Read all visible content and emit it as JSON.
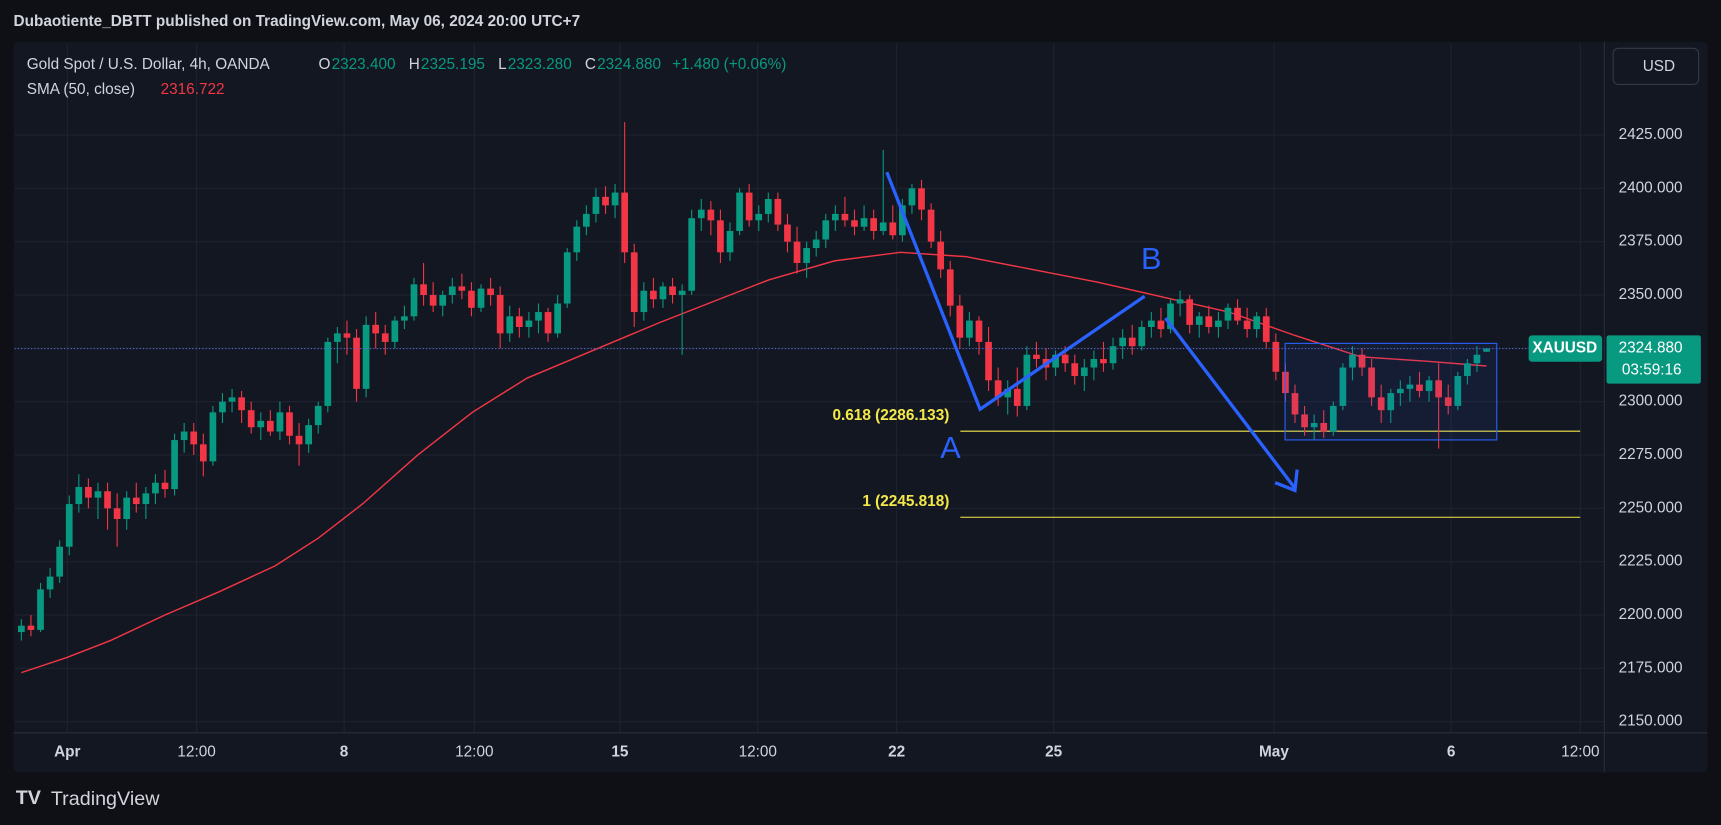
{
  "header": {
    "title": "Dubaotiente_DBTT published on TradingView.com, May 06, 2024 20:00 UTC+7"
  },
  "currency_button": "USD",
  "footer": {
    "logo": "TradingView"
  },
  "legend": {
    "symbol": "Gold Spot / U.S. Dollar, 4h, OANDA",
    "ohlc": [
      {
        "key": "O",
        "text": "2323.400"
      },
      {
        "key": "H",
        "text": "2325.195"
      },
      {
        "key": "L",
        "text": "2323.280"
      },
      {
        "key": "C",
        "text": "2324.880"
      }
    ],
    "change": "+1.480 (+0.06%)",
    "sma_name": "SMA (50, close)",
    "sma_value": "2316.722"
  },
  "chart_data": {
    "type": "candlestick",
    "up_color": "#089981",
    "down_color": "#f23645",
    "sma_color": "#f23645",
    "grid": true,
    "xlim": [
      -0.7,
      165.3
    ],
    "ylim": [
      2128.3,
      2467.7
    ],
    "xticks": [
      {
        "value": 4.8,
        "label": "Apr"
      },
      {
        "value": 18.3,
        "label": "12:00"
      },
      {
        "value": 33.7,
        "label": "8"
      },
      {
        "value": 47.3,
        "label": "12:00"
      },
      {
        "value": 62.5,
        "label": "15"
      },
      {
        "value": 76.9,
        "label": "12:00"
      },
      {
        "value": 91.4,
        "label": "22"
      },
      {
        "value": 107.8,
        "label": "25"
      },
      {
        "value": 130.8,
        "label": "May"
      },
      {
        "value": 149.3,
        "label": "6"
      },
      {
        "value": 162.8,
        "label": "12:00"
      }
    ],
    "yticks": [
      {
        "value": 2150,
        "label": "2150.000"
      },
      {
        "value": 2175,
        "label": "2175.000"
      },
      {
        "value": 2200,
        "label": "2200.000"
      },
      {
        "value": 2225,
        "label": "2225.000"
      },
      {
        "value": 2250,
        "label": "2250.000"
      },
      {
        "value": 2275,
        "label": "2275.000"
      },
      {
        "value": 2300,
        "label": "2300.000"
      },
      {
        "value": 2325,
        "label": "2325.000"
      },
      {
        "value": 2350,
        "label": "2350.000"
      },
      {
        "value": 2375,
        "label": "2375.000"
      },
      {
        "value": 2400,
        "label": "2400.000"
      },
      {
        "value": 2425,
        "label": "2425.000"
      }
    ],
    "candles": [
      [
        2192,
        2198,
        2188,
        2195
      ],
      [
        2195,
        2200,
        2190,
        2193
      ],
      [
        2193,
        2215,
        2192,
        2212
      ],
      [
        2212,
        2222,
        2208,
        2218
      ],
      [
        2218,
        2235,
        2215,
        2232
      ],
      [
        2232,
        2256,
        2228,
        2252
      ],
      [
        2252,
        2266,
        2248,
        2260
      ],
      [
        2260,
        2264,
        2250,
        2255
      ],
      [
        2255,
        2262,
        2245,
        2258
      ],
      [
        2258,
        2262,
        2240,
        2250
      ],
      [
        2250,
        2257,
        2232,
        2245
      ],
      [
        2245,
        2258,
        2240,
        2255
      ],
      [
        2255,
        2262,
        2248,
        2252
      ],
      [
        2252,
        2260,
        2245,
        2257
      ],
      [
        2257,
        2266,
        2252,
        2262
      ],
      [
        2262,
        2268,
        2255,
        2259
      ],
      [
        2259,
        2285,
        2256,
        2282
      ],
      [
        2282,
        2290,
        2276,
        2286
      ],
      [
        2286,
        2290,
        2275,
        2280
      ],
      [
        2280,
        2285,
        2265,
        2272
      ],
      [
        2272,
        2298,
        2270,
        2295
      ],
      [
        2295,
        2304,
        2290,
        2300
      ],
      [
        2300,
        2306,
        2295,
        2302
      ],
      [
        2302,
        2305,
        2290,
        2296
      ],
      [
        2296,
        2300,
        2285,
        2288
      ],
      [
        2288,
        2295,
        2282,
        2291
      ],
      [
        2291,
        2296,
        2284,
        2286
      ],
      [
        2286,
        2300,
        2282,
        2295
      ],
      [
        2295,
        2298,
        2280,
        2284
      ],
      [
        2284,
        2290,
        2270,
        2280
      ],
      [
        2280,
        2292,
        2276,
        2289
      ],
      [
        2289,
        2300,
        2285,
        2298
      ],
      [
        2298,
        2330,
        2295,
        2328
      ],
      [
        2328,
        2335,
        2318,
        2332
      ],
      [
        2332,
        2338,
        2322,
        2330
      ],
      [
        2330,
        2334,
        2300,
        2306
      ],
      [
        2306,
        2340,
        2302,
        2336
      ],
      [
        2336,
        2342,
        2325,
        2332
      ],
      [
        2332,
        2336,
        2322,
        2328
      ],
      [
        2328,
        2340,
        2325,
        2338
      ],
      [
        2338,
        2345,
        2334,
        2340
      ],
      [
        2340,
        2358,
        2338,
        2355
      ],
      [
        2355,
        2365,
        2345,
        2350
      ],
      [
        2350,
        2356,
        2342,
        2345
      ],
      [
        2345,
        2352,
        2340,
        2350
      ],
      [
        2350,
        2358,
        2346,
        2354
      ],
      [
        2354,
        2360,
        2348,
        2352
      ],
      [
        2352,
        2356,
        2340,
        2344
      ],
      [
        2344,
        2355,
        2342,
        2353
      ],
      [
        2353,
        2358,
        2345,
        2350
      ],
      [
        2350,
        2354,
        2325,
        2332
      ],
      [
        2332,
        2345,
        2328,
        2340
      ],
      [
        2340,
        2344,
        2330,
        2335
      ],
      [
        2335,
        2342,
        2330,
        2338
      ],
      [
        2338,
        2346,
        2332,
        2342
      ],
      [
        2342,
        2344,
        2328,
        2332
      ],
      [
        2332,
        2350,
        2330,
        2346
      ],
      [
        2346,
        2372,
        2344,
        2370
      ],
      [
        2370,
        2385,
        2366,
        2382
      ],
      [
        2382,
        2392,
        2378,
        2388
      ],
      [
        2388,
        2400,
        2384,
        2396
      ],
      [
        2396,
        2401,
        2388,
        2392
      ],
      [
        2392,
        2402,
        2386,
        2398
      ],
      [
        2398,
        2431,
        2365,
        2370
      ],
      [
        2370,
        2374,
        2335,
        2342
      ],
      [
        2342,
        2356,
        2338,
        2352
      ],
      [
        2352,
        2358,
        2344,
        2348
      ],
      [
        2348,
        2356,
        2344,
        2354
      ],
      [
        2354,
        2358,
        2346,
        2350
      ],
      [
        2350,
        2355,
        2322,
        2352
      ],
      [
        2352,
        2390,
        2350,
        2386
      ],
      [
        2386,
        2395,
        2380,
        2390
      ],
      [
        2390,
        2394,
        2378,
        2385
      ],
      [
        2385,
        2390,
        2365,
        2370
      ],
      [
        2370,
        2384,
        2366,
        2380
      ],
      [
        2380,
        2400,
        2378,
        2398
      ],
      [
        2398,
        2402,
        2382,
        2385
      ],
      [
        2385,
        2392,
        2380,
        2388
      ],
      [
        2388,
        2398,
        2384,
        2395
      ],
      [
        2395,
        2398,
        2380,
        2383
      ],
      [
        2383,
        2388,
        2370,
        2375
      ],
      [
        2375,
        2382,
        2360,
        2365
      ],
      [
        2365,
        2375,
        2358,
        2372
      ],
      [
        2372,
        2380,
        2368,
        2376
      ],
      [
        2376,
        2388,
        2372,
        2385
      ],
      [
        2385,
        2392,
        2380,
        2388
      ],
      [
        2388,
        2396,
        2382,
        2385
      ],
      [
        2385,
        2390,
        2378,
        2382
      ],
      [
        2382,
        2392,
        2380,
        2386
      ],
      [
        2386,
        2390,
        2376,
        2380
      ],
      [
        2380,
        2418,
        2378,
        2384
      ],
      [
        2384,
        2392,
        2376,
        2378
      ],
      [
        2378,
        2395,
        2375,
        2392
      ],
      [
        2392,
        2402,
        2388,
        2400
      ],
      [
        2400,
        2404,
        2385,
        2390
      ],
      [
        2390,
        2393,
        2372,
        2375
      ],
      [
        2375,
        2380,
        2358,
        2362
      ],
      [
        2362,
        2366,
        2340,
        2345
      ],
      [
        2345,
        2350,
        2325,
        2330
      ],
      [
        2330,
        2342,
        2326,
        2338
      ],
      [
        2338,
        2340,
        2322,
        2328
      ],
      [
        2328,
        2335,
        2305,
        2310
      ],
      [
        2310,
        2316,
        2298,
        2302
      ],
      [
        2302,
        2310,
        2294,
        2306
      ],
      [
        2306,
        2316,
        2293,
        2298
      ],
      [
        2298,
        2326,
        2296,
        2322
      ],
      [
        2322,
        2328,
        2316,
        2320
      ],
      [
        2320,
        2325,
        2310,
        2316
      ],
      [
        2316,
        2324,
        2312,
        2322
      ],
      [
        2322,
        2326,
        2314,
        2318
      ],
      [
        2318,
        2322,
        2308,
        2312
      ],
      [
        2312,
        2320,
        2305,
        2316
      ],
      [
        2316,
        2324,
        2310,
        2320
      ],
      [
        2320,
        2328,
        2314,
        2318
      ],
      [
        2318,
        2330,
        2315,
        2326
      ],
      [
        2326,
        2334,
        2320,
        2330
      ],
      [
        2330,
        2336,
        2322,
        2326
      ],
      [
        2326,
        2338,
        2324,
        2335
      ],
      [
        2335,
        2342,
        2330,
        2338
      ],
      [
        2338,
        2344,
        2330,
        2334
      ],
      [
        2334,
        2348,
        2332,
        2346
      ],
      [
        2346,
        2352,
        2340,
        2348
      ],
      [
        2348,
        2350,
        2332,
        2336
      ],
      [
        2336,
        2342,
        2330,
        2340
      ],
      [
        2340,
        2345,
        2332,
        2335
      ],
      [
        2335,
        2342,
        2330,
        2338
      ],
      [
        2338,
        2346,
        2334,
        2344
      ],
      [
        2344,
        2348,
        2336,
        2338
      ],
      [
        2338,
        2344,
        2330,
        2334
      ],
      [
        2334,
        2342,
        2330,
        2340
      ],
      [
        2340,
        2344,
        2325,
        2328
      ],
      [
        2328,
        2332,
        2310,
        2314
      ],
      [
        2314,
        2318,
        2300,
        2304
      ],
      [
        2304,
        2308,
        2290,
        2294
      ],
      [
        2294,
        2298,
        2284,
        2288
      ],
      [
        2288,
        2294,
        2282,
        2290
      ],
      [
        2290,
        2296,
        2283,
        2286
      ],
      [
        2286,
        2300,
        2284,
        2298
      ],
      [
        2298,
        2318,
        2296,
        2316
      ],
      [
        2316,
        2326,
        2310,
        2322
      ],
      [
        2322,
        2325,
        2312,
        2316
      ],
      [
        2316,
        2320,
        2298,
        2302
      ],
      [
        2302,
        2308,
        2290,
        2296
      ],
      [
        2296,
        2306,
        2290,
        2304
      ],
      [
        2304,
        2310,
        2298,
        2306
      ],
      [
        2306,
        2312,
        2300,
        2308
      ],
      [
        2308,
        2314,
        2302,
        2305
      ],
      [
        2305,
        2312,
        2300,
        2310
      ],
      [
        2310,
        2318,
        2278,
        2302
      ],
      [
        2302,
        2308,
        2294,
        2298
      ],
      [
        2298,
        2314,
        2296,
        2312
      ],
      [
        2312,
        2320,
        2308,
        2318
      ],
      [
        2318,
        2326,
        2314,
        2322
      ],
      [
        2323.4,
        2325.195,
        2323.28,
        2324.88
      ]
    ],
    "sma": {
      "x": [
        0,
        4.7,
        9.3,
        15,
        20.7,
        26.5,
        31,
        35.6,
        41.4,
        47.1,
        52.8,
        59.7,
        66.6,
        72.3,
        78,
        84.9,
        91.8,
        98.6,
        105.5,
        112.4,
        119.2,
        126.1,
        133,
        139.9,
        146.7,
        153
      ],
      "values": [
        2173,
        2180,
        2188,
        2200,
        2211,
        2223,
        2236,
        2252,
        2275,
        2295,
        2311,
        2324,
        2337,
        2347,
        2357,
        2366,
        2370,
        2368,
        2362,
        2356,
        2349,
        2342,
        2331,
        2321,
        2319,
        2316.722
      ]
    },
    "fib_levels": [
      {
        "value": 2286.133,
        "label": "0.618 (2286.133)"
      },
      {
        "value": 2245.818,
        "label": "1 (2245.818)"
      }
    ],
    "annotations": [
      "A",
      "B"
    ],
    "price_tag": {
      "symbol": "XAUUSD",
      "price": {
        "value": 2324.88,
        "label": "2324.880"
      },
      "countdown": "03:59:16"
    }
  }
}
